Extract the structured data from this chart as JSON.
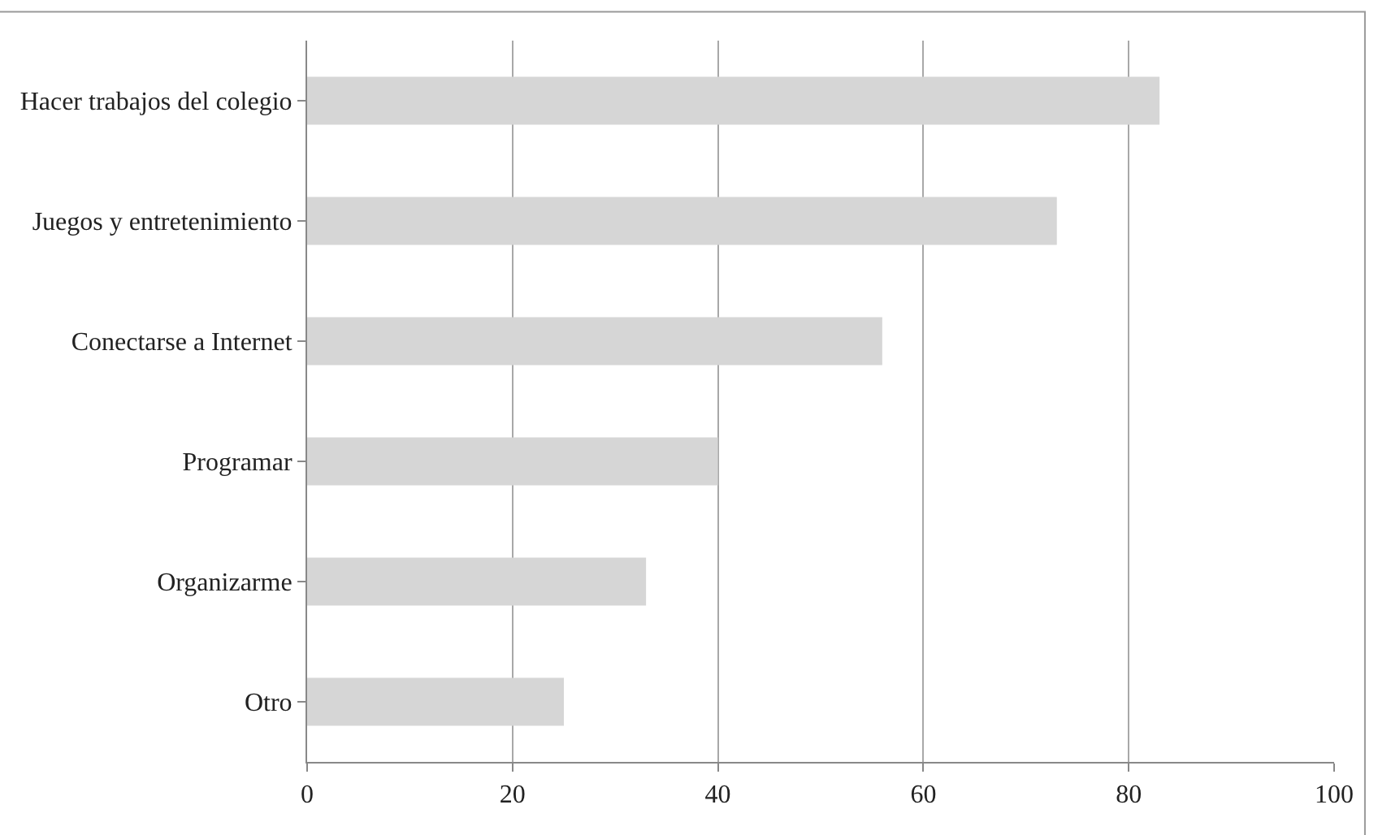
{
  "chart_data": {
    "type": "bar",
    "orientation": "horizontal",
    "categories": [
      "Hacer trabajos del colegio",
      "Juegos y entretenimiento",
      "Conectarse a Internet",
      "Programar",
      "Organizarme",
      "Otro"
    ],
    "values": [
      83,
      73,
      56,
      40,
      33,
      25
    ],
    "color": "#d6d6d6",
    "xlim": [
      0,
      100
    ],
    "xticks": [
      0,
      20,
      40,
      60,
      80,
      100
    ],
    "grid": "x"
  }
}
